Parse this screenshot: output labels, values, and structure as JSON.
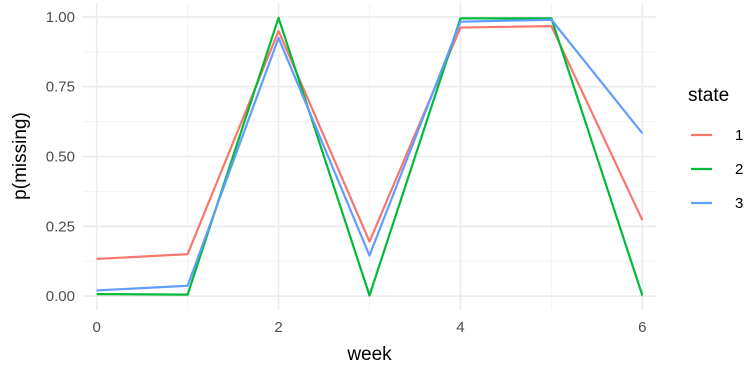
{
  "chart_data": {
    "type": "line",
    "xlabel": "week",
    "ylabel": "p(missing)",
    "xlim": [
      -0.15,
      6.15
    ],
    "ylim": [
      -0.05,
      1.05
    ],
    "x_ticks": [
      0,
      2,
      4,
      6
    ],
    "x_tick_labels": [
      "0",
      "2",
      "4",
      "6"
    ],
    "y_ticks": [
      0,
      0.25,
      0.5,
      0.75,
      1
    ],
    "y_tick_labels": [
      "0.00",
      "0.25",
      "0.50",
      "0.75",
      "1.00"
    ],
    "grid": true,
    "legend": {
      "title": "state",
      "position": "right"
    },
    "x": [
      0,
      1,
      2,
      3,
      4,
      5,
      6
    ],
    "series": [
      {
        "name": "1",
        "color": "#F8766D",
        "values": [
          0.133,
          0.15,
          0.95,
          0.195,
          0.962,
          0.967,
          0.272
        ]
      },
      {
        "name": "2",
        "color": "#00BA38",
        "values": [
          0.007,
          0.005,
          0.997,
          0.002,
          0.995,
          0.995,
          0.002
        ]
      },
      {
        "name": "3",
        "color": "#619CFF",
        "values": [
          0.02,
          0.037,
          0.925,
          0.145,
          0.983,
          0.99,
          0.583
        ]
      }
    ]
  }
}
